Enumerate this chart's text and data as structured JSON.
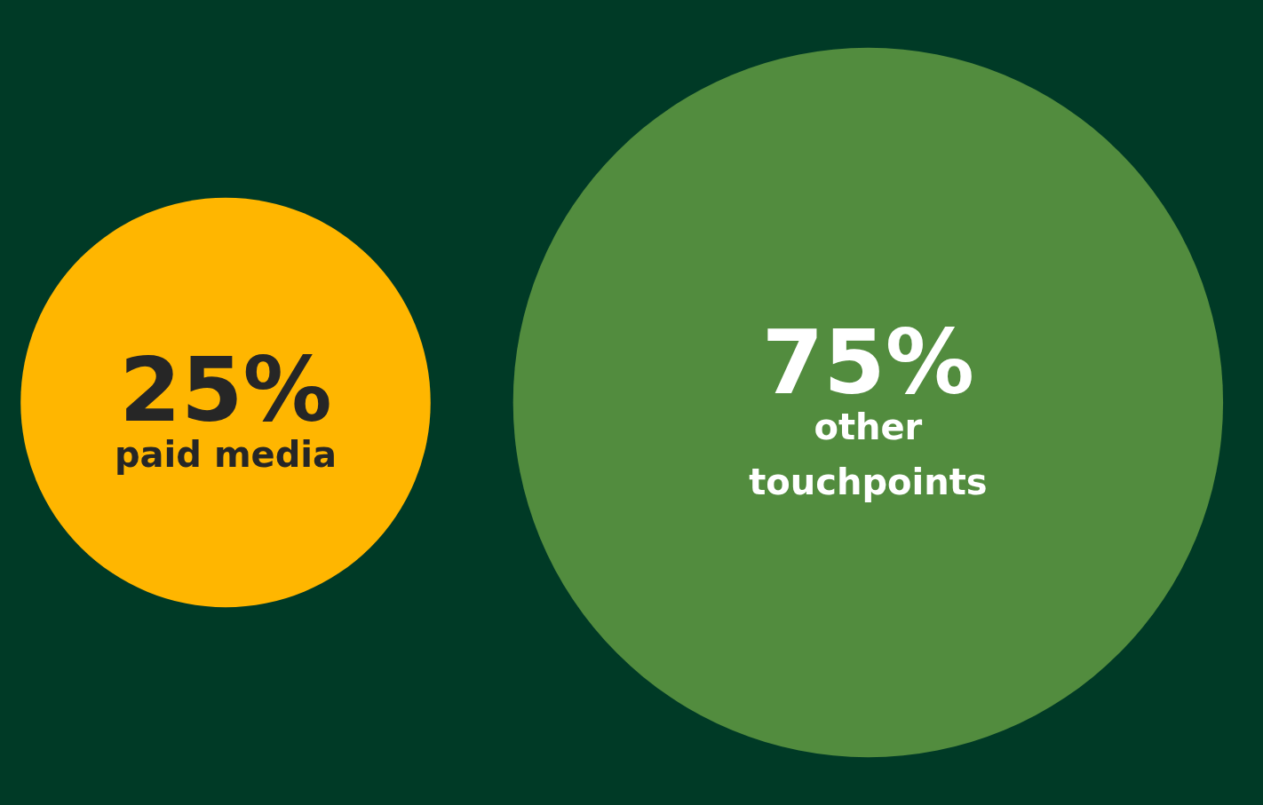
{
  "chart_data": {
    "type": "other",
    "categories": [
      "paid media",
      "other touchpoints"
    ],
    "values": [
      25,
      75
    ],
    "value_labels": [
      "25%",
      "75%"
    ],
    "colors": [
      "#ffb600",
      "#528c3e"
    ]
  }
}
